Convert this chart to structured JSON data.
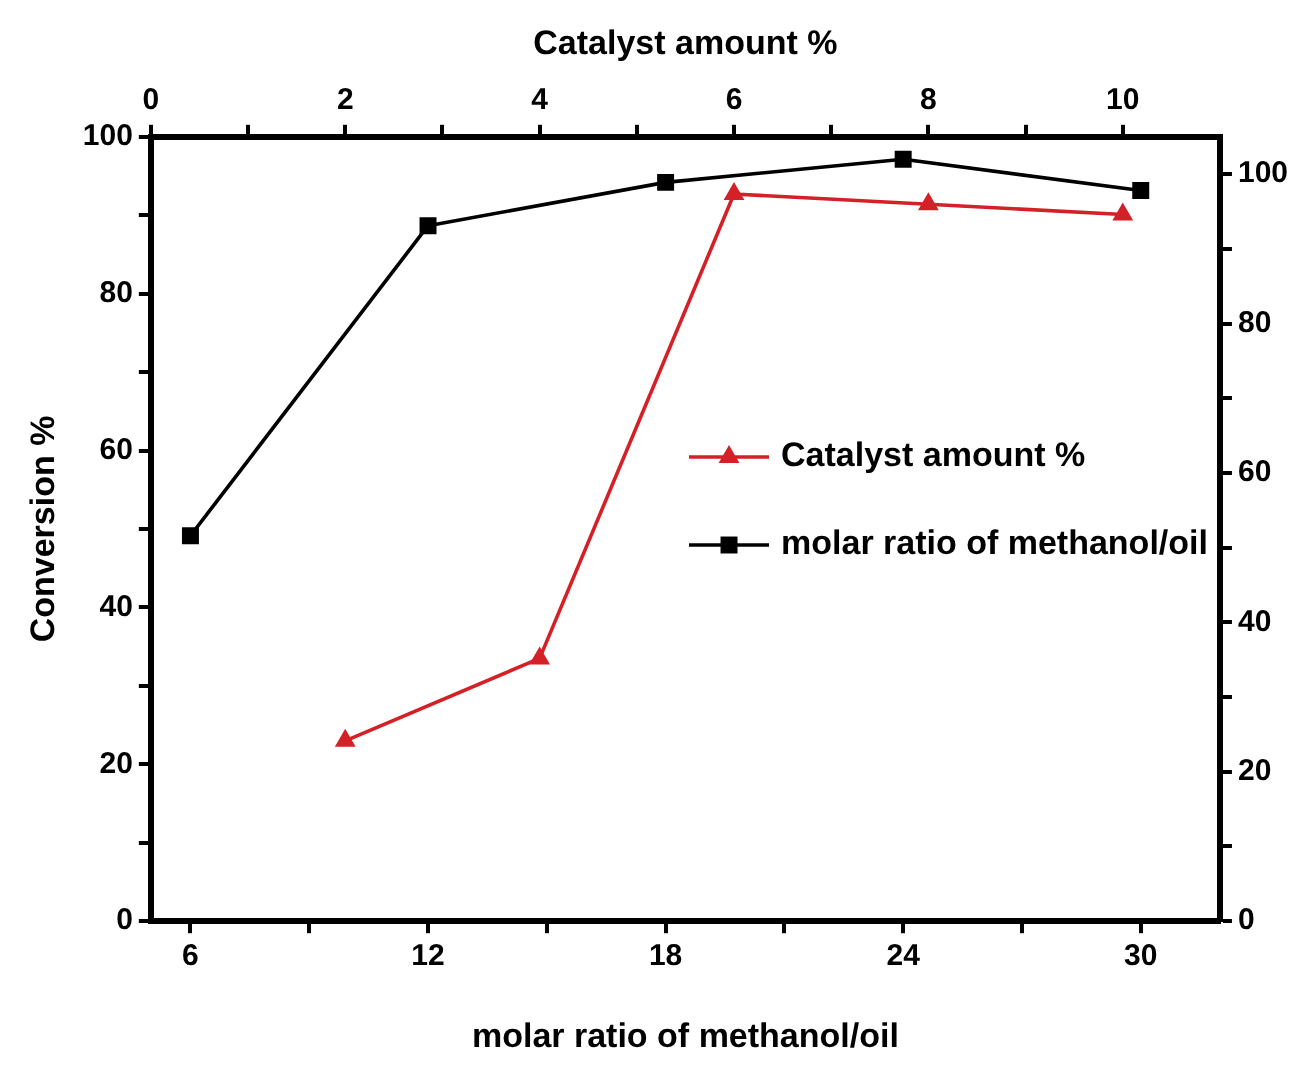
{
  "chart_data": {
    "type": "line",
    "xlabel": "molar ratio of methanol/oil",
    "ylabel": "Conversion %",
    "x2label": "Catalyst amount %",
    "xlim": [
      5,
      32
    ],
    "xticks": [
      6,
      {
        "value": 9,
        "label": null
      },
      12,
      {
        "value": 15,
        "label": null
      },
      18,
      {
        "value": 21,
        "label": null
      },
      24,
      {
        "value": 27,
        "label": null
      },
      30
    ],
    "x2lim": [
      0,
      11
    ],
    "x2ticks": [
      0,
      {
        "value": 1,
        "label": null
      },
      2,
      {
        "value": 3,
        "label": null
      },
      4,
      {
        "value": 5,
        "label": null
      },
      6,
      {
        "value": 7,
        "label": null
      },
      8,
      {
        "value": 9,
        "label": null
      },
      10
    ],
    "ylim": [
      0,
      100
    ],
    "yticks": [
      0,
      {
        "value": 10,
        "label": null
      },
      20,
      {
        "value": 30,
        "label": null
      },
      40,
      {
        "value": 50,
        "label": null
      },
      60,
      {
        "value": 70,
        "label": null
      },
      80,
      {
        "value": 90,
        "label": null
      },
      100
    ],
    "y2lim": [
      0,
      105
    ],
    "y2ticks": [
      0,
      {
        "value": 10,
        "label": null
      },
      20,
      {
        "value": 30,
        "label": null
      },
      40,
      {
        "value": 50,
        "label": null
      },
      60,
      {
        "value": 70,
        "label": null
      },
      80,
      {
        "value": 90,
        "label": null
      },
      100
    ],
    "series": [
      {
        "name": "Catalyst amount %",
        "color": "#d42027",
        "axis": "x2",
        "marker": "triangle",
        "x": [
          2,
          4,
          6,
          8,
          10
        ],
        "values": [
          23.0,
          33.5,
          92.7,
          91.4,
          90.1
        ]
      },
      {
        "name": "molar ratio of methanol/oil",
        "color": "#000000",
        "axis": "y2",
        "marker": "square",
        "x": [
          6,
          12,
          18,
          24,
          30
        ],
        "values": [
          51.6,
          93.1,
          98.9,
          102.0,
          97.8
        ]
      }
    ],
    "legend": "right",
    "grid": false,
    "line_style": "solid"
  }
}
